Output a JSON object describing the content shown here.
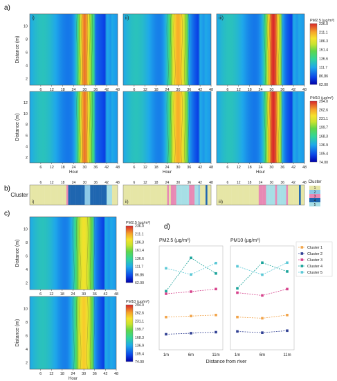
{
  "panel_labels": {
    "a": "a)",
    "b": "b)",
    "c": "c)",
    "d": "d)"
  },
  "subpanel_labels": [
    "i)",
    "ii)",
    "iii)"
  ],
  "colors": {
    "cluster1": "#f2a44a",
    "cluster2": "#2f3f93",
    "cluster3": "#d6418b",
    "cluster4": "#1aa39a",
    "cluster5": "#5bc8d6",
    "cluster_band": [
      "#e6e6a6",
      "#8cc8e6",
      "#e889b4",
      "#1f66b0",
      "#a7dfe6"
    ]
  },
  "heatmap_common": {
    "ylabel": "Distance (m)",
    "xlabel": "Hour",
    "x_ticks": [
      "6",
      "12",
      "18",
      "24",
      "30",
      "36",
      "42",
      "48"
    ],
    "y_ticks": [
      "2",
      "4",
      "6",
      "8",
      "10"
    ],
    "y_ticks_pm10": [
      "2",
      "4",
      "6",
      "8",
      "10",
      "12"
    ]
  },
  "colorbars": {
    "pm25": {
      "title": "PM2.5 (µg/m³)",
      "ticks": [
        "236.0",
        "211.1",
        "186.3",
        "161.4",
        "136.6",
        "111.7",
        "86.86",
        "62.00"
      ]
    },
    "pm10": {
      "title": "PM10 (µg/m³)",
      "ticks": [
        "294.0",
        "262.6",
        "231.1",
        "199.7",
        "168.3",
        "136.9",
        "105.4",
        "74.00"
      ]
    }
  },
  "cluster_strip": {
    "ylabel": "Cluster",
    "legend_title": "Cluster",
    "legend_items": [
      "1",
      "2",
      "3",
      "4",
      "5"
    ],
    "x_ticks": [
      "6",
      "12",
      "18",
      "24",
      "30",
      "36",
      "42",
      "48"
    ],
    "panels": [
      {
        "label": "i)",
        "hours": [
          1,
          1,
          1,
          1,
          1,
          1,
          1,
          1,
          1,
          1,
          1,
          1,
          1,
          1,
          1,
          1,
          1,
          1,
          1,
          1,
          3,
          4,
          4,
          4,
          4,
          4,
          4,
          4,
          4,
          4,
          2,
          2,
          2,
          4,
          4,
          4,
          4,
          4,
          4,
          4,
          4,
          4,
          5,
          5,
          5,
          1,
          1,
          1
        ]
      },
      {
        "label": "ii)",
        "hours": [
          1,
          1,
          1,
          1,
          1,
          1,
          1,
          1,
          1,
          1,
          1,
          1,
          1,
          1,
          1,
          1,
          1,
          1,
          1,
          1,
          1,
          1,
          1,
          1,
          3,
          1,
          3,
          3,
          3,
          5,
          5,
          5,
          5,
          5,
          5,
          5,
          3,
          3,
          3,
          5,
          5,
          2,
          1,
          1,
          1,
          4,
          1,
          1
        ]
      },
      {
        "label": "iii)",
        "hours": [
          1,
          1,
          1,
          1,
          1,
          1,
          1,
          1,
          1,
          1,
          1,
          1,
          1,
          1,
          1,
          1,
          1,
          1,
          1,
          1,
          1,
          1,
          1,
          3,
          3,
          3,
          3,
          5,
          5,
          5,
          5,
          5,
          3,
          5,
          5,
          5,
          5,
          5,
          3,
          1,
          1,
          1,
          1,
          1,
          1,
          4,
          1,
          1
        ]
      }
    ]
  },
  "line_panel": {
    "pm25_title": "PM2.5 (µg/m³)",
    "pm10_title": "PM10 (µg/m³)",
    "x_categories": [
      "1m",
      "6m",
      "11m"
    ],
    "xlabel": "Distance from river",
    "legend": [
      "Cluster 1",
      "Cluster 2",
      "Cluster 3",
      "Cluster 4",
      "Cluster 5"
    ]
  },
  "chart_data": [
    {
      "type": "line",
      "title": "PM2.5 (µg/m³)",
      "xlabel": "Distance from river",
      "categories": [
        "1m",
        "6m",
        "11m"
      ],
      "ylim": [
        40,
        240
      ],
      "series": [
        {
          "name": "Cluster 1",
          "values": [
            103,
            105,
            107
          ]
        },
        {
          "name": "Cluster 2",
          "values": [
            70,
            72,
            74
          ]
        },
        {
          "name": "Cluster 3",
          "values": [
            148,
            152,
            157
          ]
        },
        {
          "name": "Cluster 4",
          "values": [
            153,
            217,
            187
          ]
        },
        {
          "name": "Cluster 5",
          "values": [
            197,
            185,
            207
          ]
        }
      ]
    },
    {
      "type": "line",
      "title": "PM10 (µg/m³)",
      "categories": [
        "1m",
        "6m",
        "11m"
      ],
      "ylim": [
        40,
        300
      ],
      "series": [
        {
          "name": "Cluster 1",
          "values": [
            122,
            119,
            127
          ]
        },
        {
          "name": "Cluster 2",
          "values": [
            86,
            83,
            88
          ]
        },
        {
          "name": "Cluster 3",
          "values": [
            183,
            176,
            192
          ]
        },
        {
          "name": "Cluster 4",
          "values": [
            194,
            258,
            236
          ]
        },
        {
          "name": "Cluster 5",
          "values": [
            249,
            228,
            258
          ]
        }
      ]
    },
    {
      "type": "heatmap",
      "title": "PM2.5 (µg/m³)",
      "xlabel": "Hour",
      "ylabel": "Distance (m)",
      "xlim": [
        0,
        48
      ],
      "zlim": [
        62.0,
        236.0
      ],
      "panels": [
        {
          "name": "i)",
          "peak_hour": 30,
          "peak_level": 0.92,
          "width": 3.5
        },
        {
          "name": "ii)",
          "peak_hour": 30,
          "peak_level": 0.85,
          "width": 5
        },
        {
          "name": "iii)",
          "peak_hour": 31,
          "peak_level": 1.0,
          "width": 4
        },
        {
          "name": "c)",
          "peak_hour": 30,
          "peak_level": 0.75,
          "width": 5
        }
      ]
    },
    {
      "type": "heatmap",
      "title": "PM10 (µg/m³)",
      "xlabel": "Hour",
      "ylabel": "Distance (m)",
      "xlim": [
        0,
        48
      ],
      "zlim": [
        74.0,
        294.0
      ],
      "panels": [
        {
          "name": "i)",
          "peak_hour": 30,
          "peak_level": 0.92,
          "width": 3.5
        },
        {
          "name": "ii)",
          "peak_hour": 30,
          "peak_level": 0.85,
          "width": 5
        },
        {
          "name": "iii)",
          "peak_hour": 31,
          "peak_level": 1.0,
          "width": 4
        },
        {
          "name": "c)",
          "peak_hour": 30,
          "peak_level": 0.8,
          "width": 5
        }
      ]
    }
  ]
}
